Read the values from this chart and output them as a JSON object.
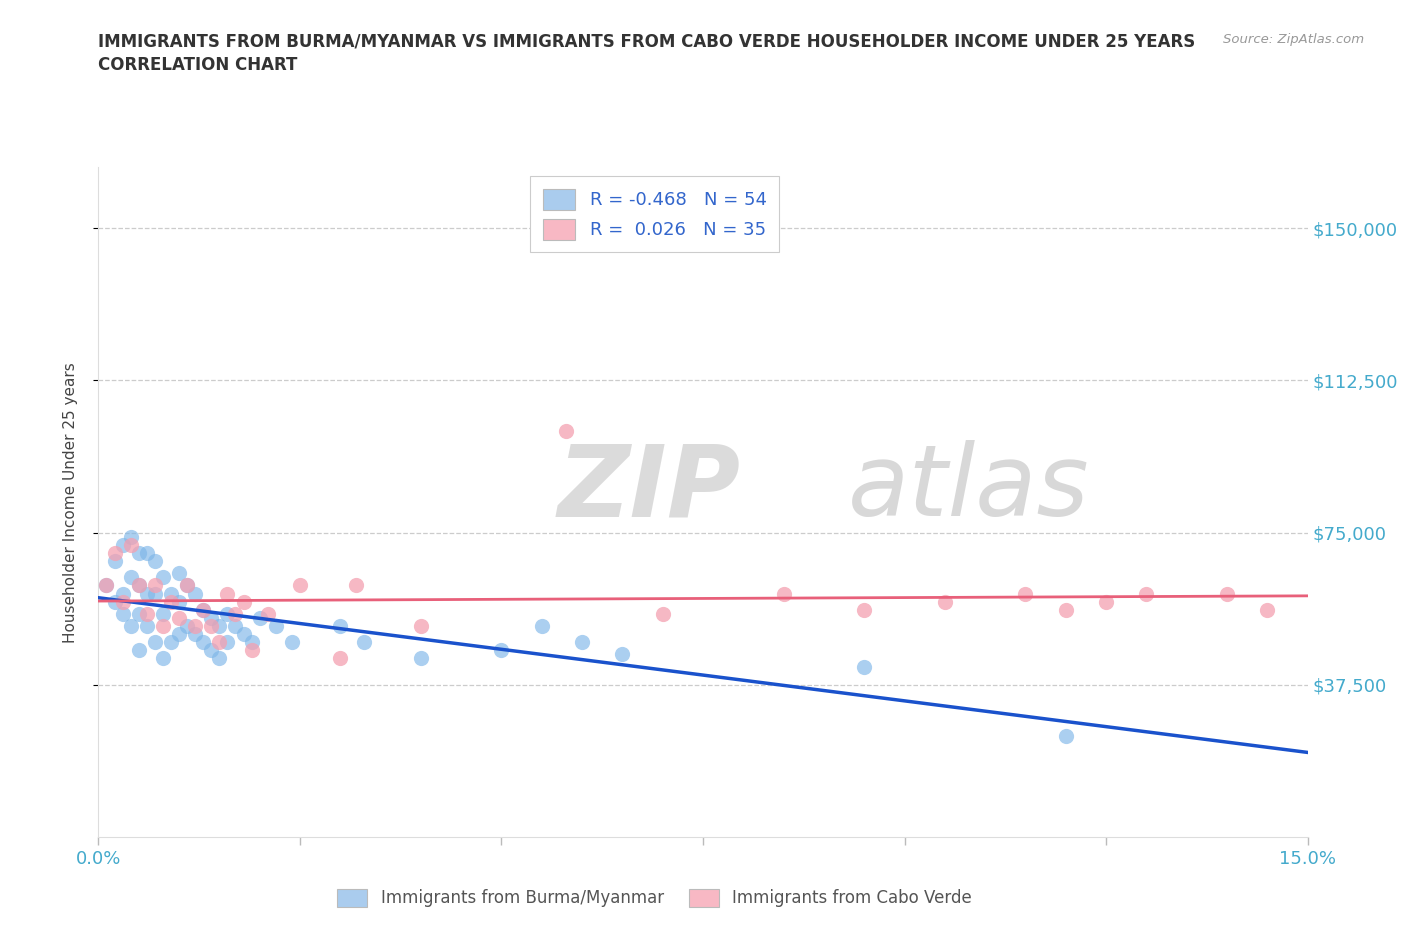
{
  "title_line1": "IMMIGRANTS FROM BURMA/MYANMAR VS IMMIGRANTS FROM CABO VERDE HOUSEHOLDER INCOME UNDER 25 YEARS",
  "title_line2": "CORRELATION CHART",
  "source_text": "Source: ZipAtlas.com",
  "ylabel": "Householder Income Under 25 years",
  "xlim": [
    0.0,
    0.15
  ],
  "ylim": [
    0,
    165000
  ],
  "xtick_values": [
    0.0,
    0.025,
    0.05,
    0.075,
    0.1,
    0.125,
    0.15
  ],
  "xtick_labels": [
    "0.0%",
    "",
    "",
    "",
    "",
    "",
    "15.0%"
  ],
  "ytick_values": [
    37500,
    75000,
    112500,
    150000
  ],
  "ytick_labels": [
    "$37,500",
    "$75,000",
    "$112,500",
    "$150,000"
  ],
  "legend_text_1": "R = -0.468   N = 54",
  "legend_text_2": "R =  0.026   N = 35",
  "color_burma": "#7EB6E8",
  "color_cabo": "#F4A0B0",
  "color_burma_line": "#1A52CC",
  "color_cabo_line": "#E8607A",
  "watermark_zip": "ZIP",
  "watermark_atlas": "atlas",
  "label_burma": "Immigrants from Burma/Myanmar",
  "label_cabo": "Immigrants from Cabo Verde",
  "burma_x": [
    0.001,
    0.002,
    0.002,
    0.003,
    0.003,
    0.003,
    0.004,
    0.004,
    0.004,
    0.005,
    0.005,
    0.005,
    0.005,
    0.006,
    0.006,
    0.006,
    0.007,
    0.007,
    0.007,
    0.008,
    0.008,
    0.008,
    0.009,
    0.009,
    0.01,
    0.01,
    0.01,
    0.011,
    0.011,
    0.012,
    0.012,
    0.013,
    0.013,
    0.014,
    0.014,
    0.015,
    0.015,
    0.016,
    0.016,
    0.017,
    0.018,
    0.019,
    0.02,
    0.022,
    0.024,
    0.03,
    0.033,
    0.04,
    0.05,
    0.055,
    0.06,
    0.065,
    0.095,
    0.12
  ],
  "burma_y": [
    62000,
    58000,
    68000,
    55000,
    72000,
    60000,
    74000,
    64000,
    52000,
    70000,
    62000,
    55000,
    46000,
    70000,
    60000,
    52000,
    68000,
    60000,
    48000,
    64000,
    55000,
    44000,
    60000,
    48000,
    65000,
    58000,
    50000,
    62000,
    52000,
    60000,
    50000,
    56000,
    48000,
    54000,
    46000,
    52000,
    44000,
    55000,
    48000,
    52000,
    50000,
    48000,
    54000,
    52000,
    48000,
    52000,
    48000,
    44000,
    46000,
    52000,
    48000,
    45000,
    42000,
    25000
  ],
  "cabo_x": [
    0.001,
    0.002,
    0.003,
    0.004,
    0.005,
    0.006,
    0.007,
    0.008,
    0.009,
    0.01,
    0.011,
    0.012,
    0.013,
    0.014,
    0.015,
    0.016,
    0.017,
    0.018,
    0.019,
    0.021,
    0.025,
    0.03,
    0.032,
    0.04,
    0.058,
    0.07,
    0.085,
    0.095,
    0.105,
    0.115,
    0.12,
    0.125,
    0.13,
    0.14,
    0.145
  ],
  "cabo_y": [
    62000,
    70000,
    58000,
    72000,
    62000,
    55000,
    62000,
    52000,
    58000,
    54000,
    62000,
    52000,
    56000,
    52000,
    48000,
    60000,
    55000,
    58000,
    46000,
    55000,
    62000,
    44000,
    62000,
    52000,
    100000,
    55000,
    60000,
    56000,
    58000,
    60000,
    56000,
    58000,
    60000,
    60000,
    56000
  ]
}
